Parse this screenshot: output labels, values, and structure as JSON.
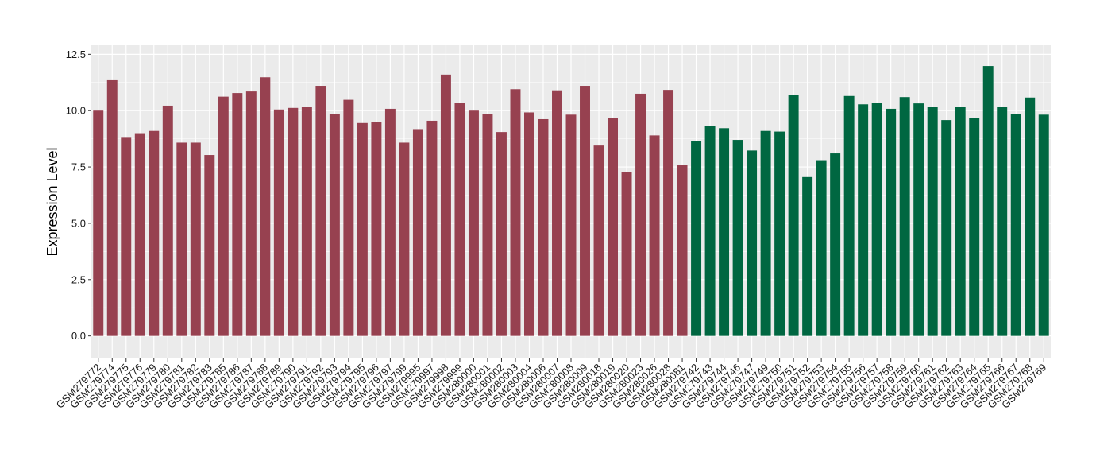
{
  "chart_data": {
    "type": "bar",
    "title": "",
    "xlabel": "",
    "ylabel": "Expression Level",
    "ylim": [
      -1.0,
      12.9
    ],
    "yticks": [
      "0.0",
      "2.5",
      "5.0",
      "7.5",
      "10.0",
      "12.5"
    ],
    "ytick_values": [
      0,
      2.5,
      5,
      7.5,
      10,
      12.5
    ],
    "grid": true,
    "legend": "none",
    "colors": {
      "group1": "#974150",
      "group2": "#006741",
      "panel": "#ebebeb",
      "grid": "#ffffff"
    },
    "categories": [
      "GSM279772",
      "GSM279774",
      "GSM279775",
      "GSM279776",
      "GSM279779",
      "GSM279780",
      "GSM279781",
      "GSM279782",
      "GSM279783",
      "GSM279785",
      "GSM279786",
      "GSM279787",
      "GSM279788",
      "GSM279789",
      "GSM279790",
      "GSM279791",
      "GSM279792",
      "GSM279793",
      "GSM279794",
      "GSM279795",
      "GSM279796",
      "GSM279797",
      "GSM279799",
      "GSM279995",
      "GSM279997",
      "GSM279998",
      "GSM279999",
      "GSM280000",
      "GSM280001",
      "GSM280002",
      "GSM280003",
      "GSM280004",
      "GSM280006",
      "GSM280007",
      "GSM280008",
      "GSM280009",
      "GSM280018",
      "GSM280019",
      "GSM280020",
      "GSM280023",
      "GSM280026",
      "GSM280028",
      "GSM280081",
      "GSM279742",
      "GSM279743",
      "GSM279744",
      "GSM279746",
      "GSM279747",
      "GSM279749",
      "GSM279750",
      "GSM279751",
      "GSM279752",
      "GSM279753",
      "GSM279754",
      "GSM279755",
      "GSM279756",
      "GSM279757",
      "GSM279758",
      "GSM279759",
      "GSM279760",
      "GSM279761",
      "GSM279762",
      "GSM279763",
      "GSM279764",
      "GSM279765",
      "GSM279766",
      "GSM279767",
      "GSM279768",
      "GSM279769"
    ],
    "values": [
      10.0,
      11.35,
      8.83,
      9.0,
      9.1,
      10.22,
      8.58,
      8.58,
      8.03,
      10.62,
      10.78,
      10.85,
      11.48,
      10.05,
      10.12,
      10.18,
      11.1,
      9.85,
      10.48,
      9.45,
      9.48,
      10.08,
      8.58,
      9.18,
      9.55,
      11.6,
      10.35,
      10.0,
      9.85,
      9.05,
      10.95,
      9.92,
      9.62,
      10.9,
      9.82,
      11.1,
      8.45,
      9.68,
      7.28,
      10.75,
      8.9,
      10.92,
      7.58,
      8.65,
      9.33,
      9.22,
      8.7,
      8.23,
      9.1,
      9.07,
      10.68,
      7.05,
      7.8,
      8.1,
      10.65,
      10.28,
      10.35,
      10.08,
      10.6,
      10.32,
      10.15,
      9.58,
      10.18,
      9.68,
      11.98,
      10.15,
      9.85,
      10.58,
      9.82
    ],
    "groups": [
      1,
      1,
      1,
      1,
      1,
      1,
      1,
      1,
      1,
      1,
      1,
      1,
      1,
      1,
      1,
      1,
      1,
      1,
      1,
      1,
      1,
      1,
      1,
      1,
      1,
      1,
      1,
      1,
      1,
      1,
      1,
      1,
      1,
      1,
      1,
      1,
      1,
      1,
      1,
      1,
      1,
      1,
      1,
      2,
      2,
      2,
      2,
      2,
      2,
      2,
      2,
      2,
      2,
      2,
      2,
      2,
      2,
      2,
      2,
      2,
      2,
      2,
      2,
      2,
      2,
      2,
      2,
      2,
      2
    ]
  }
}
